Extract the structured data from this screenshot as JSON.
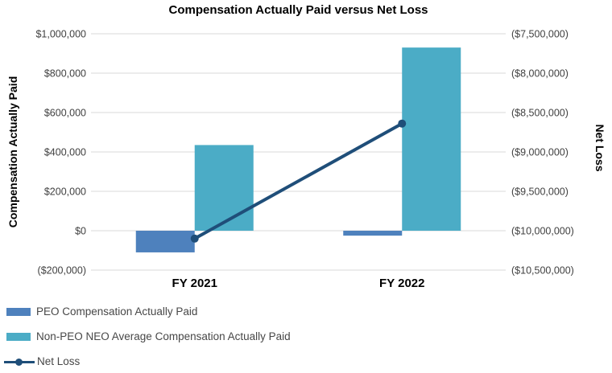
{
  "chart_data": {
    "type": "combo",
    "title": "Compensation Actually Paid versus Net Loss",
    "categories": [
      "FY 2021",
      "FY 2022"
    ],
    "series": [
      {
        "name": "PEO Compensation Actually Paid",
        "type": "bar",
        "axis": "left",
        "color": "#4E81BD",
        "values": [
          -110000,
          -25000
        ]
      },
      {
        "name": "Non-PEO NEO Average Compensation Actually Paid",
        "type": "bar",
        "axis": "left",
        "color": "#4BACC6",
        "values": [
          435000,
          930000
        ]
      },
      {
        "name": "Net Loss",
        "type": "line",
        "axis": "right",
        "color": "#1F4E79",
        "values": [
          -10100000,
          -8640000
        ]
      }
    ],
    "left_axis": {
      "title": "Compensation Actually Paid",
      "min": -200000,
      "max": 1000000,
      "step": 200000,
      "tick_labels": [
        "$1,000,000",
        "$800,000",
        "$600,000",
        "$400,000",
        "$200,000",
        "$0",
        "($200,000)"
      ]
    },
    "right_axis": {
      "title": "Net Loss",
      "min": -10500000,
      "max": -7500000,
      "step": 500000,
      "tick_labels": [
        "($7,500,000)",
        "($8,000,000)",
        "($8,500,000)",
        "($9,000,000)",
        "($9,500,000)",
        "($10,000,000)",
        "($10,500,000)"
      ]
    },
    "grid": true,
    "legend_position": "bottom-left",
    "colors": {
      "gridline": "#D9D9D9",
      "tick_text": "#404040",
      "legend_text": "#474747",
      "background": "#FFFFFF"
    }
  }
}
